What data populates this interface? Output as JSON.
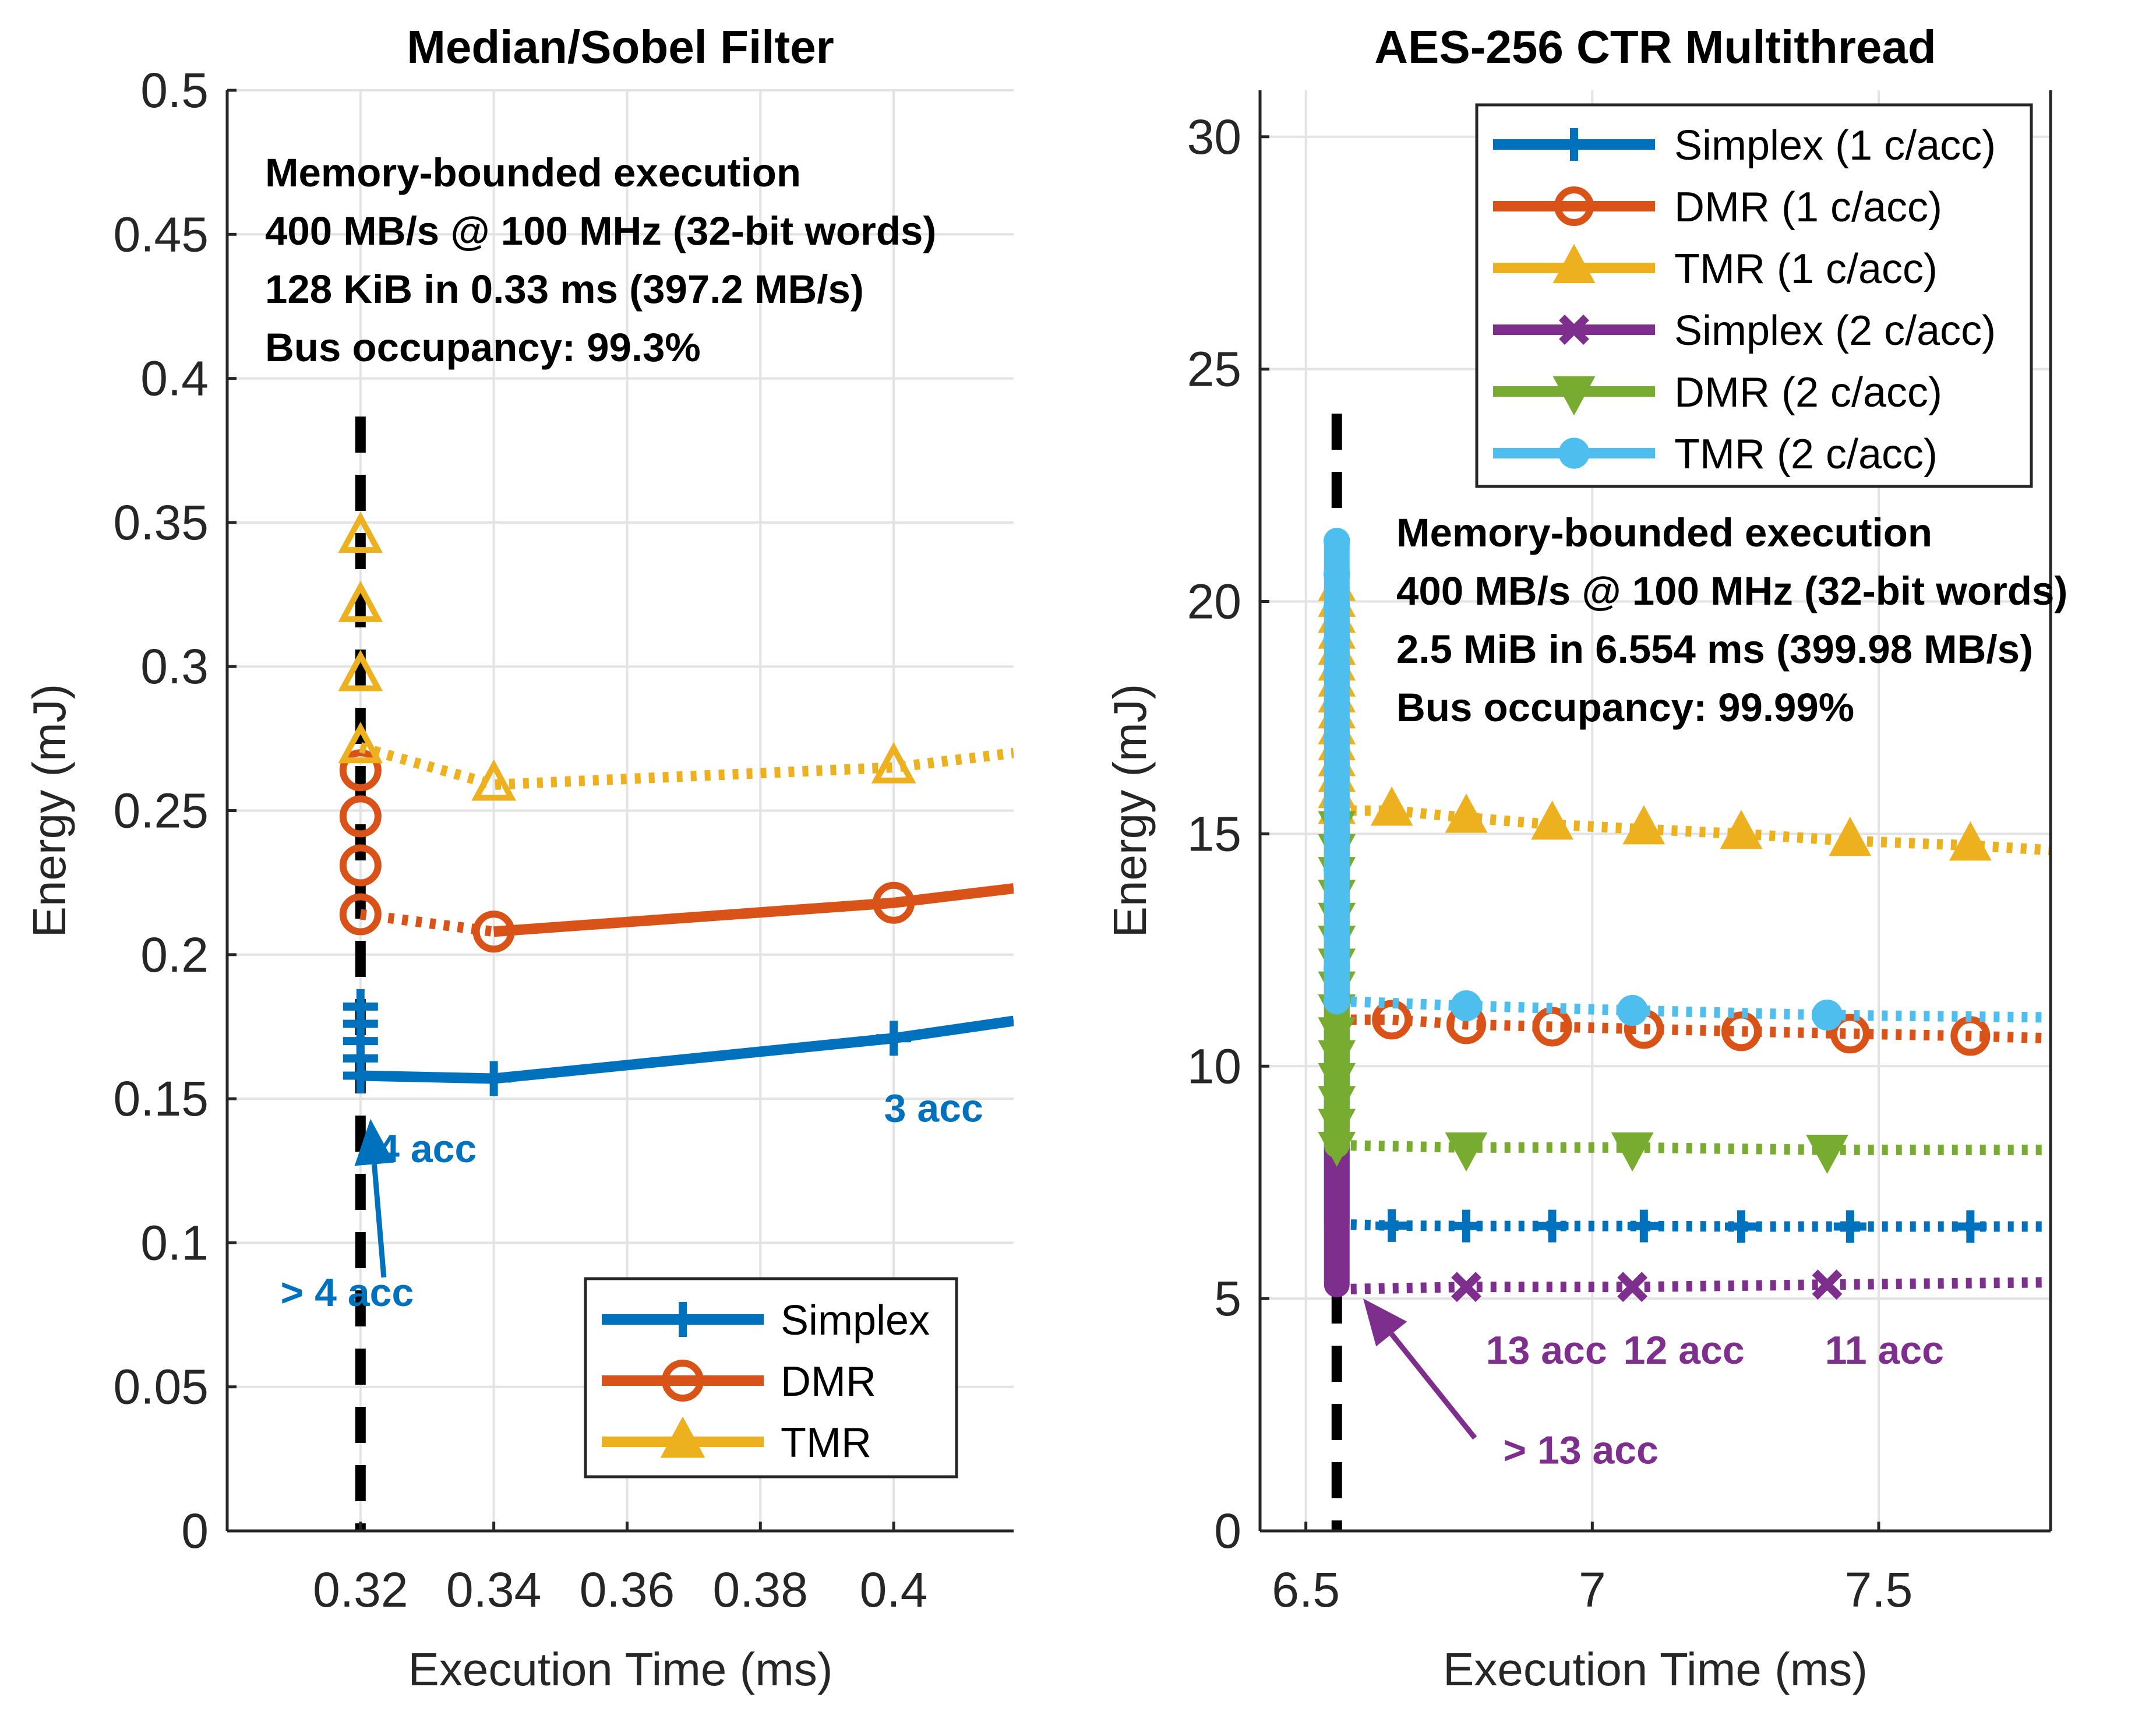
{
  "chart_data": [
    {
      "type": "line",
      "title": "Median/Sobel Filter",
      "xlabel": "Execution Time (ms)",
      "ylabel": "Energy (mJ)",
      "xlim": [
        0.3,
        0.418
      ],
      "ylim": [
        0,
        0.5
      ],
      "xticks": [
        0.32,
        0.34,
        0.36,
        0.38,
        0.4
      ],
      "xtick_labels": [
        "0.32",
        "0.34",
        "0.36",
        "0.38",
        "0.4"
      ],
      "yticks": [
        0,
        0.05,
        0.1,
        0.15,
        0.2,
        0.25,
        0.3,
        0.35,
        0.4,
        0.45,
        0.5
      ],
      "ytick_labels": [
        "0",
        "0.05",
        "0.1",
        "0.15",
        "0.2",
        "0.25",
        "0.3",
        "0.35",
        "0.4",
        "0.45",
        "0.5"
      ],
      "grid": true,
      "vline_x": 0.32,
      "annotation_lines": [
        "Memory-bounded execution",
        "400 MB/s @ 100 MHz (32-bit words)",
        "128 KiB in 0.33 ms (397.2 MB/s)",
        "Bus occupancy: 99.3%"
      ],
      "legend": {
        "position": "bottom-right",
        "entries": [
          "Simplex",
          "DMR",
          "TMR"
        ]
      },
      "series": [
        {
          "name": "Simplex",
          "color": "#0072BD",
          "marker": "plus",
          "ghost_points": [
            [
              0.32,
              0.182
            ],
            [
              0.32,
              0.176
            ],
            [
              0.32,
              0.17
            ],
            [
              0.32,
              0.164
            ]
          ],
          "dotted": [],
          "solid": [
            [
              0.32,
              0.158
            ],
            [
              0.34,
              0.157
            ],
            [
              0.4,
              0.171
            ],
            [
              0.418,
              0.177
            ]
          ],
          "markers": [
            [
              0.32,
              0.158
            ],
            [
              0.34,
              0.157
            ],
            [
              0.4,
              0.171
            ]
          ]
        },
        {
          "name": "DMR",
          "color": "#D95319",
          "marker": "circle",
          "ghost_points": [
            [
              0.32,
              0.264
            ],
            [
              0.32,
              0.248
            ],
            [
              0.32,
              0.231
            ]
          ],
          "dotted": [
            [
              0.32,
              0.214
            ],
            [
              0.34,
              0.208
            ]
          ],
          "solid": [
            [
              0.34,
              0.208
            ],
            [
              0.4,
              0.218
            ],
            [
              0.418,
              0.223
            ]
          ],
          "markers": [
            [
              0.32,
              0.214
            ],
            [
              0.34,
              0.208
            ],
            [
              0.4,
              0.218
            ]
          ]
        },
        {
          "name": "TMR",
          "color": "#EDB120",
          "marker": "triangle-up",
          "ghost_points": [
            [
              0.32,
              0.345
            ],
            [
              0.32,
              0.321
            ],
            [
              0.32,
              0.297
            ]
          ],
          "dotted": [
            [
              0.32,
              0.272
            ],
            [
              0.34,
              0.259
            ],
            [
              0.4,
              0.265
            ],
            [
              0.418,
              0.27
            ]
          ],
          "solid": [],
          "markers": [
            [
              0.32,
              0.272
            ],
            [
              0.34,
              0.259
            ],
            [
              0.4,
              0.265
            ]
          ]
        }
      ],
      "labels": [
        {
          "text": "4 acc",
          "x": 0.33,
          "y": 0.128,
          "color": "#0072BD"
        },
        {
          "text": "3 acc",
          "x": 0.406,
          "y": 0.142,
          "color": "#0072BD"
        },
        {
          "text": "> 4 acc",
          "x": 0.318,
          "y": 0.078,
          "color": "#0072BD"
        }
      ],
      "arrows": [
        {
          "from": [
            0.3235,
            0.088
          ],
          "to": [
            0.3215,
            0.143
          ],
          "color": "#0072BD"
        }
      ]
    },
    {
      "type": "line",
      "title": "AES-256 CTR Multithread",
      "xlabel": "Execution Time (ms)",
      "ylabel": "Energy (mJ)",
      "xlim": [
        6.42,
        7.8
      ],
      "ylim": [
        0,
        31
      ],
      "xticks": [
        6.5,
        7,
        7.5
      ],
      "xtick_labels": [
        "6.5",
        "7",
        "7.5"
      ],
      "yticks": [
        0,
        5,
        10,
        15,
        20,
        25,
        30
      ],
      "ytick_labels": [
        "0",
        "5",
        "10",
        "15",
        "20",
        "25",
        "30"
      ],
      "grid": true,
      "vline_x": 6.554,
      "annotation_lines": [
        "Memory-bounded execution",
        "400 MB/s @ 100 MHz (32-bit words)",
        "2.5 MiB in 6.554 ms (399.98 MB/s)",
        "Bus occupancy: 99.99%"
      ],
      "legend": {
        "position": "top-right",
        "entries": [
          "Simplex (1 c/acc)",
          "DMR (1 c/acc)",
          "TMR (1 c/acc)",
          "Simplex (2 c/acc)",
          "DMR (2 c/acc)",
          "TMR (2 c/acc)"
        ]
      },
      "series": [
        {
          "name": "Simplex (1 c/acc)",
          "color": "#0072BD",
          "marker": "plus",
          "ghost_range": [
            6.6,
            10.8
          ],
          "dotted": [
            [
              6.554,
              6.6
            ],
            [
              6.65,
              6.57
            ],
            [
              6.78,
              6.56
            ],
            [
              6.93,
              6.56
            ],
            [
              7.09,
              6.56
            ],
            [
              7.26,
              6.55
            ],
            [
              7.45,
              6.55
            ],
            [
              7.66,
              6.55
            ],
            [
              7.8,
              6.55
            ]
          ],
          "markers": [
            [
              6.65,
              6.57
            ],
            [
              6.78,
              6.56
            ],
            [
              6.93,
              6.56
            ],
            [
              7.09,
              6.56
            ],
            [
              7.26,
              6.55
            ],
            [
              7.45,
              6.55
            ],
            [
              7.66,
              6.55
            ]
          ]
        },
        {
          "name": "DMR (1 c/acc)",
          "color": "#D95319",
          "marker": "circle",
          "ghost_range": [
            11.0,
            15.3
          ],
          "dotted": [
            [
              6.554,
              11.0
            ],
            [
              6.65,
              11.0
            ],
            [
              6.78,
              10.9
            ],
            [
              6.93,
              10.85
            ],
            [
              7.09,
              10.8
            ],
            [
              7.26,
              10.75
            ],
            [
              7.45,
              10.7
            ],
            [
              7.66,
              10.65
            ],
            [
              7.8,
              10.6
            ]
          ],
          "markers": [
            [
              6.65,
              11.0
            ],
            [
              6.78,
              10.9
            ],
            [
              6.93,
              10.85
            ],
            [
              7.09,
              10.8
            ],
            [
              7.26,
              10.75
            ],
            [
              7.45,
              10.7
            ],
            [
              7.66,
              10.65
            ]
          ]
        },
        {
          "name": "TMR (1 c/acc)",
          "color": "#EDB120",
          "marker": "triangle-up",
          "ghost_range": [
            15.5,
            20.3
          ],
          "dotted": [
            [
              6.554,
              15.5
            ],
            [
              6.65,
              15.5
            ],
            [
              6.78,
              15.35
            ],
            [
              6.93,
              15.2
            ],
            [
              7.09,
              15.1
            ],
            [
              7.26,
              15.0
            ],
            [
              7.45,
              14.85
            ],
            [
              7.66,
              14.75
            ],
            [
              7.8,
              14.65
            ]
          ],
          "markers": [
            [
              6.65,
              15.5
            ],
            [
              6.78,
              15.35
            ],
            [
              6.93,
              15.2
            ],
            [
              7.09,
              15.1
            ],
            [
              7.26,
              15.0
            ],
            [
              7.45,
              14.85
            ],
            [
              7.66,
              14.75
            ]
          ]
        },
        {
          "name": "Simplex (2 c/acc)",
          "color": "#7E2F8E",
          "marker": "x",
          "ghost_range": [
            5.3,
            8.3
          ],
          "dotted": [
            [
              6.554,
              5.2
            ],
            [
              6.78,
              5.25
            ],
            [
              7.07,
              5.25
            ],
            [
              7.41,
              5.3
            ],
            [
              7.8,
              5.35
            ]
          ],
          "markers": [
            [
              6.78,
              5.25
            ],
            [
              7.07,
              5.25
            ],
            [
              7.41,
              5.3
            ]
          ]
        },
        {
          "name": "DMR (2 c/acc)",
          "color": "#77AC30",
          "marker": "triangle-down",
          "ghost_range": [
            8.3,
            15.2
          ],
          "dotted": [
            [
              6.554,
              8.3
            ],
            [
              6.78,
              8.25
            ],
            [
              7.07,
              8.25
            ],
            [
              7.41,
              8.2
            ],
            [
              7.8,
              8.2
            ]
          ],
          "markers": [
            [
              6.78,
              8.25
            ],
            [
              7.07,
              8.25
            ],
            [
              7.41,
              8.2
            ]
          ]
        },
        {
          "name": "TMR (2 c/acc)",
          "color": "#4DBEEE",
          "marker": "dot",
          "ghost_range": [
            11.4,
            21.3
          ],
          "dotted": [
            [
              6.554,
              11.4
            ],
            [
              6.78,
              11.3
            ],
            [
              7.07,
              11.2
            ],
            [
              7.41,
              11.1
            ],
            [
              7.8,
              11.05
            ]
          ],
          "markers": [
            [
              6.78,
              11.3
            ],
            [
              7.07,
              11.2
            ],
            [
              7.41,
              11.1
            ]
          ]
        }
      ],
      "labels": [
        {
          "text": "13 acc",
          "x": 6.92,
          "y": 3.6,
          "color": "#7E2F8E"
        },
        {
          "text": "12 acc",
          "x": 7.16,
          "y": 3.6,
          "color": "#7E2F8E"
        },
        {
          "text": "11 acc",
          "x": 7.51,
          "y": 3.6,
          "color": "#7E2F8E"
        },
        {
          "text": "> 13 acc",
          "x": 6.98,
          "y": 1.45,
          "color": "#7E2F8E"
        }
      ],
      "arrows": [
        {
          "from": [
            6.795,
            2.0
          ],
          "to": [
            6.6,
            5.0
          ],
          "color": "#7E2F8E"
        }
      ]
    }
  ]
}
